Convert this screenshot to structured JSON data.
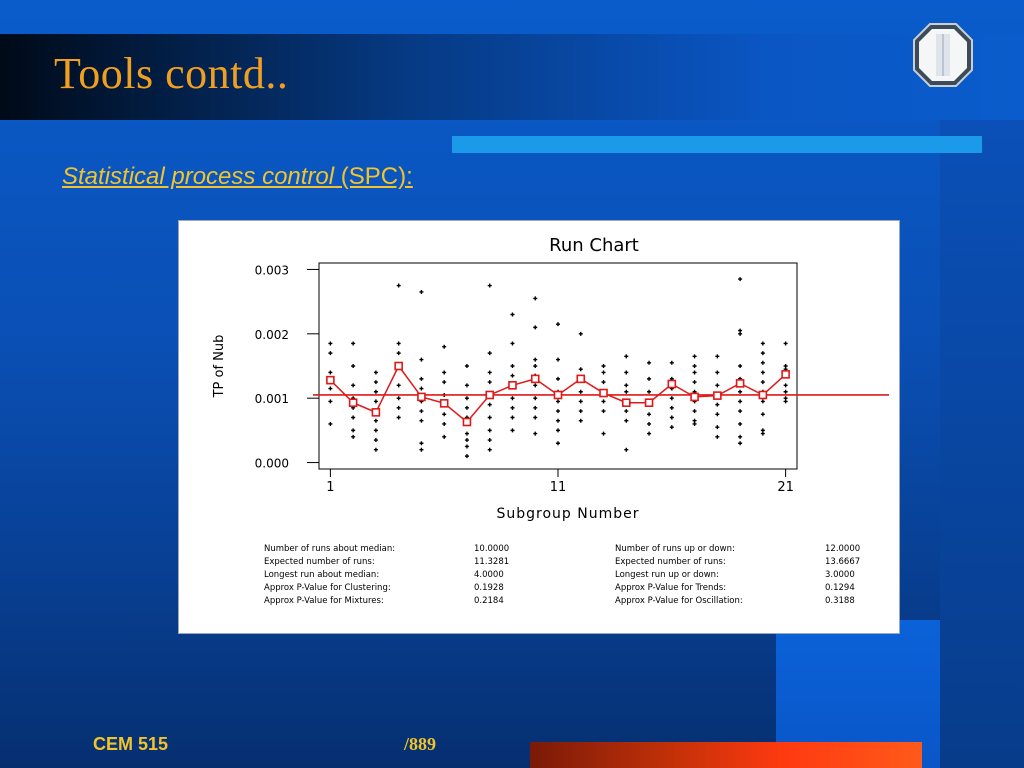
{
  "slide": {
    "title": "Tools contd..",
    "subtitle_italic": "Statistical process control",
    "subtitle_rest": " (SPC):",
    "footer_left": "CEM 515",
    "footer_mid": "/889"
  },
  "colors": {
    "title": "#f0a020",
    "accent_text": "#f2c42a",
    "series": "#e01818"
  },
  "chart_data": {
    "type": "line",
    "title": "Run Chart",
    "xlabel": "Subgroup Number",
    "ylabel": "TP of Nub",
    "xlim": [
      0.5,
      21.5
    ],
    "ylim": [
      -0.0001,
      0.0031
    ],
    "x_ticks": [
      1,
      11,
      21
    ],
    "y_ticks": [
      0.0,
      0.001,
      0.002,
      0.003
    ],
    "y_tick_labels": [
      "0.000",
      "0.001",
      "0.002",
      "0.003"
    ],
    "x_tick_labels": [
      "1",
      "11",
      "21"
    ],
    "median_line": 0.00105,
    "series": [
      {
        "x": [
          1,
          2,
          3,
          4,
          5,
          6,
          7,
          8,
          9,
          10,
          11,
          12,
          13,
          14,
          15,
          16,
          17,
          18,
          19,
          20,
          21
        ],
        "values": [
          0.00128,
          0.00093,
          0.00078,
          0.0015,
          0.00102,
          0.00092,
          0.00063,
          0.00105,
          0.0012,
          0.0013,
          0.00105,
          0.0013,
          0.00108,
          0.00093,
          0.00093,
          0.00122,
          0.00102,
          0.00104,
          0.00123,
          0.00105,
          0.00137
        ]
      }
    ],
    "individual_points": [
      [
        1,
        [
          0.00185,
          0.0017,
          0.0014,
          0.00125,
          0.00115,
          0.00095,
          0.0006
        ]
      ],
      [
        2,
        [
          0.00185,
          0.0015,
          0.0012,
          0.001,
          0.00085,
          0.0007,
          0.0005,
          0.0004
        ]
      ],
      [
        3,
        [
          0.0014,
          0.00125,
          0.0011,
          0.00095,
          0.0008,
          0.00065,
          0.0005,
          0.00035,
          0.0002
        ]
      ],
      [
        4,
        [
          0.00275,
          0.00185,
          0.0017,
          0.0015,
          0.0012,
          0.001,
          0.00085,
          0.0007
        ]
      ],
      [
        5,
        [
          0.00265,
          0.0016,
          0.0013,
          0.00115,
          0.00095,
          0.0008,
          0.00065,
          0.0003,
          0.0002
        ]
      ],
      [
        6,
        [
          0.0018,
          0.0014,
          0.00125,
          0.00105,
          0.0009,
          0.00075,
          0.0006,
          0.0004
        ]
      ],
      [
        7,
        [
          0.0015,
          0.0012,
          0.001,
          0.00085,
          0.0007,
          0.0006,
          0.00045,
          0.00035,
          0.00025,
          0.0001
        ]
      ],
      [
        8,
        [
          0.00275,
          0.0017,
          0.0014,
          0.00125,
          0.00105,
          0.0009,
          0.0007,
          0.0005,
          0.00035,
          0.0002
        ]
      ],
      [
        9,
        [
          0.0023,
          0.00185,
          0.0015,
          0.00135,
          0.0012,
          0.001,
          0.00085,
          0.0007,
          0.0005
        ]
      ],
      [
        10,
        [
          0.00255,
          0.0021,
          0.0016,
          0.0015,
          0.00135,
          0.0012,
          0.001,
          0.00085,
          0.0007,
          0.00045
        ]
      ],
      [
        11,
        [
          0.00215,
          0.0016,
          0.0013,
          0.0011,
          0.00095,
          0.0008,
          0.00065,
          0.0005,
          0.0003
        ]
      ],
      [
        12,
        [
          0.002,
          0.00145,
          0.0013,
          0.0011,
          0.00095,
          0.0008,
          0.00065
        ]
      ],
      [
        13,
        [
          0.0015,
          0.0014,
          0.00125,
          0.0011,
          0.00095,
          0.0008,
          0.00045
        ]
      ],
      [
        14,
        [
          0.00165,
          0.0014,
          0.0012,
          0.0011,
          0.00095,
          0.0008,
          0.00065,
          0.0002
        ]
      ],
      [
        15,
        [
          0.00155,
          0.0013,
          0.0011,
          0.0009,
          0.00075,
          0.0006,
          0.00045
        ]
      ],
      [
        16,
        [
          0.00155,
          0.0013,
          0.00115,
          0.001,
          0.00085,
          0.0007,
          0.00055
        ]
      ],
      [
        17,
        [
          0.00165,
          0.0015,
          0.0014,
          0.00125,
          0.0011,
          0.00095,
          0.0008,
          0.00065,
          0.0006
        ]
      ],
      [
        18,
        [
          0.00165,
          0.0014,
          0.0012,
          0.00105,
          0.0009,
          0.00075,
          0.00055,
          0.0004
        ]
      ],
      [
        19,
        [
          0.00285,
          0.00205,
          0.002,
          0.0015,
          0.0013,
          0.0011,
          0.00095,
          0.0008,
          0.0006,
          0.0004,
          0.0003
        ]
      ],
      [
        20,
        [
          0.00185,
          0.0017,
          0.00155,
          0.0014,
          0.00125,
          0.0011,
          0.00095,
          0.00075,
          0.0005,
          0.00045
        ]
      ],
      [
        21,
        [
          0.00185,
          0.0015,
          0.00145,
          0.00135,
          0.0012,
          0.0011,
          0.001,
          0.00095
        ]
      ]
    ],
    "stats_left": [
      {
        "label": "Number of runs about median:",
        "value": "10.0000"
      },
      {
        "label": "Expected number of runs:",
        "value": "11.3281"
      },
      {
        "label": "Longest run about median:",
        "value": "4.0000"
      },
      {
        "label": "Approx P-Value for Clustering:",
        "value": "0.1928"
      },
      {
        "label": "Approx P-Value for Mixtures:",
        "value": "0.2184"
      }
    ],
    "stats_right": [
      {
        "label": "Number of runs up or down:",
        "value": "12.0000"
      },
      {
        "label": "Expected number of runs:",
        "value": "13.6667"
      },
      {
        "label": "Longest run up or down:",
        "value": "3.0000"
      },
      {
        "label": "Approx P-Value for Trends:",
        "value": "0.1294"
      },
      {
        "label": "Approx P-Value for Oscillation:",
        "value": "0.3188"
      }
    ]
  }
}
